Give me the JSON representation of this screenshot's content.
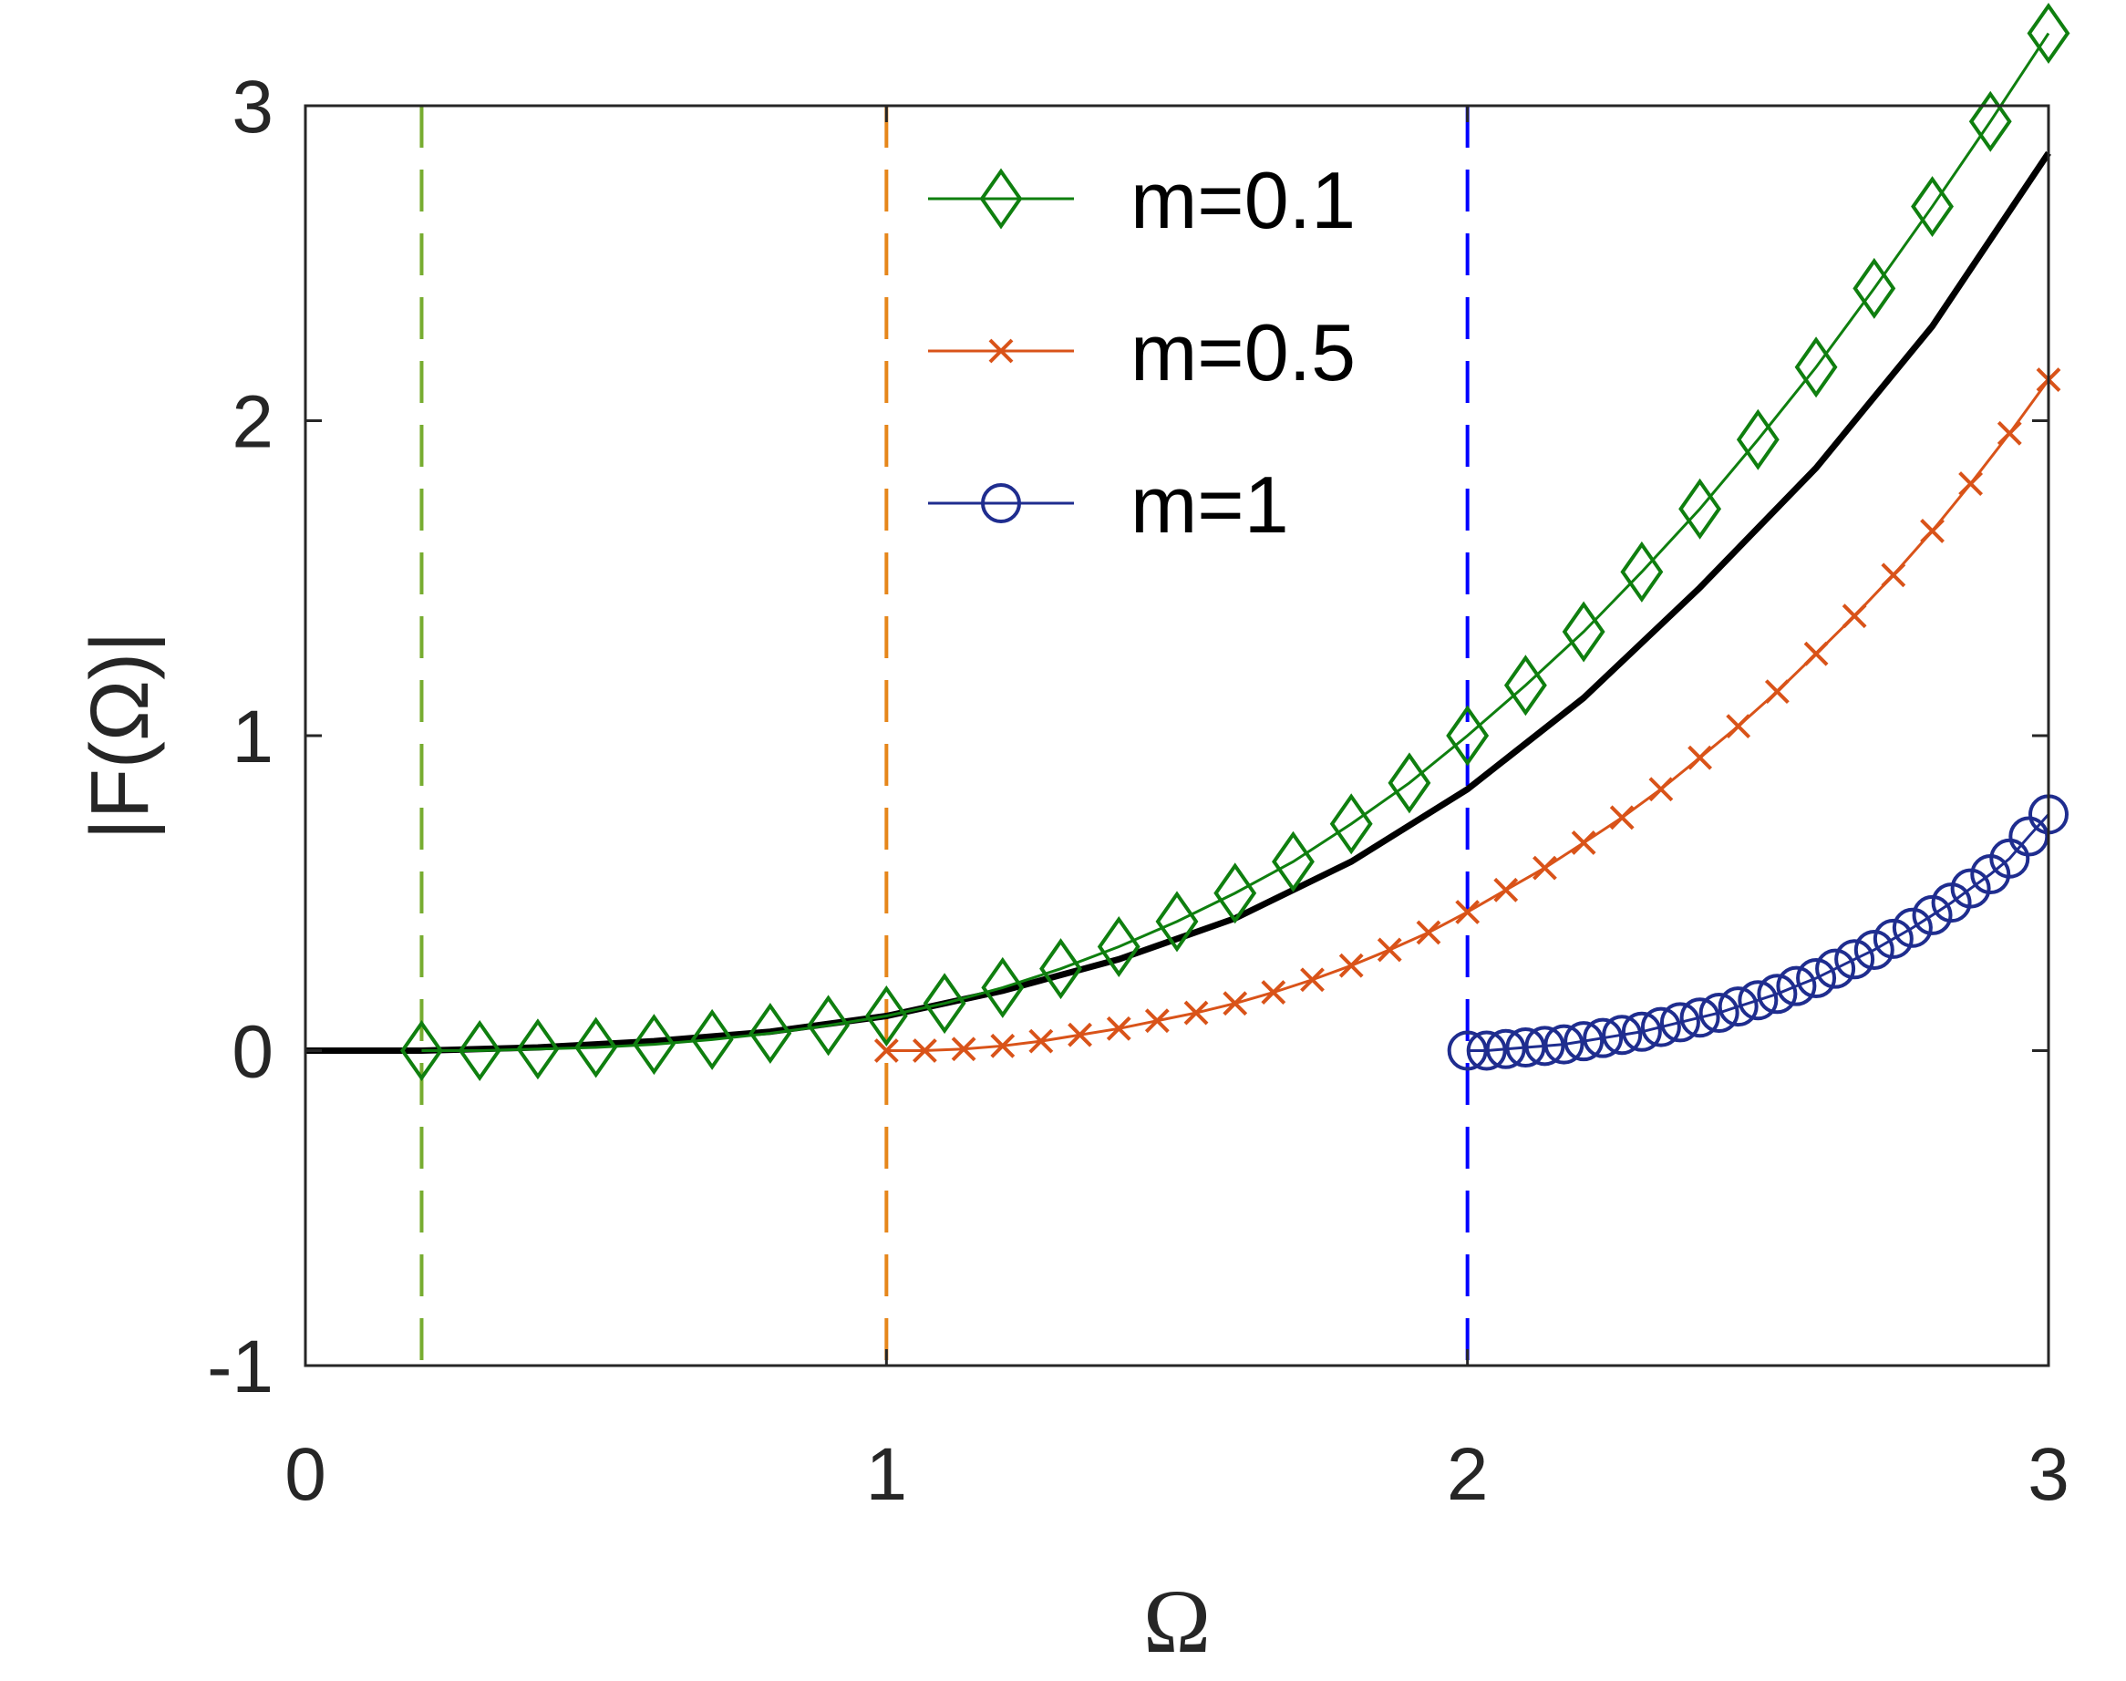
{
  "chart_data": {
    "type": "line",
    "xlabel": "Ω",
    "ylabel": "|F(Ω)|",
    "xlim": [
      0,
      3
    ],
    "ylim": [
      -1,
      3
    ],
    "xticks": [
      "0",
      "1",
      "2",
      "3"
    ],
    "yticks": [
      "-1",
      "0",
      "1",
      "2",
      "3"
    ],
    "grid": false,
    "legend": "top-center",
    "reference_curve": {
      "color": "#000000",
      "x": [
        0,
        0.2,
        0.4,
        0.6,
        0.8,
        1.0,
        1.2,
        1.4,
        1.6,
        1.8,
        2.0,
        2.2,
        2.4,
        2.6,
        2.8,
        3.0
      ],
      "y": [
        0,
        0.0,
        0.01,
        0.03,
        0.06,
        0.11,
        0.19,
        0.29,
        0.42,
        0.6,
        0.83,
        1.12,
        1.47,
        1.85,
        2.3,
        2.85
      ]
    },
    "vertical_lines": [
      {
        "x": 0.2,
        "color": "#77ac30"
      },
      {
        "x": 1.0,
        "color": "#e6861a"
      },
      {
        "x": 2.0,
        "color": "#0000ff"
      }
    ],
    "series": [
      {
        "name": "m=0.1",
        "color": "#0f7f0f",
        "marker": "diamond",
        "x": [
          0.2,
          0.3,
          0.4,
          0.5,
          0.6,
          0.7,
          0.8,
          0.9,
          1.0,
          1.1,
          1.2,
          1.3,
          1.4,
          1.5,
          1.6,
          1.7,
          1.8,
          1.9,
          2.0,
          2.1,
          2.2,
          2.3,
          2.4,
          2.5,
          2.6,
          2.7,
          2.8,
          2.9,
          3.0
        ],
        "y": [
          0.0,
          0.0,
          0.005,
          0.01,
          0.02,
          0.035,
          0.055,
          0.08,
          0.11,
          0.15,
          0.2,
          0.26,
          0.33,
          0.41,
          0.5,
          0.6,
          0.72,
          0.85,
          1.0,
          1.16,
          1.33,
          1.52,
          1.72,
          1.94,
          2.17,
          2.42,
          2.68,
          2.95,
          3.23
        ]
      },
      {
        "name": "m=0.5",
        "color": "#d95319",
        "marker": "x",
        "x": [
          1.0,
          1.066,
          1.133,
          1.2,
          1.266,
          1.333,
          1.4,
          1.466,
          1.533,
          1.6,
          1.666,
          1.733,
          1.8,
          1.866,
          1.933,
          2.0,
          2.066,
          2.133,
          2.2,
          2.266,
          2.333,
          2.4,
          2.466,
          2.533,
          2.6,
          2.666,
          2.733,
          2.8,
          2.866,
          2.933,
          3.0
        ],
        "y": [
          0.0,
          0.0,
          0.005,
          0.015,
          0.03,
          0.05,
          0.07,
          0.095,
          0.12,
          0.15,
          0.185,
          0.225,
          0.27,
          0.32,
          0.375,
          0.44,
          0.51,
          0.58,
          0.66,
          0.74,
          0.83,
          0.93,
          1.03,
          1.14,
          1.26,
          1.38,
          1.51,
          1.65,
          1.8,
          1.96,
          2.13
        ]
      },
      {
        "name": "m=1",
        "color": "#1f2d8f",
        "marker": "circle",
        "x": [
          2.0,
          2.033,
          2.066,
          2.1,
          2.133,
          2.166,
          2.2,
          2.233,
          2.266,
          2.3,
          2.333,
          2.366,
          2.4,
          2.433,
          2.466,
          2.5,
          2.533,
          2.566,
          2.6,
          2.633,
          2.666,
          2.7,
          2.733,
          2.766,
          2.8,
          2.833,
          2.866,
          2.9,
          2.933,
          2.966,
          3.0
        ],
        "y": [
          0.0,
          0.0,
          0.005,
          0.01,
          0.015,
          0.02,
          0.03,
          0.04,
          0.05,
          0.06,
          0.075,
          0.09,
          0.105,
          0.12,
          0.14,
          0.16,
          0.18,
          0.205,
          0.23,
          0.26,
          0.29,
          0.32,
          0.355,
          0.39,
          0.43,
          0.47,
          0.515,
          0.56,
          0.61,
          0.68,
          0.75
        ]
      }
    ]
  }
}
